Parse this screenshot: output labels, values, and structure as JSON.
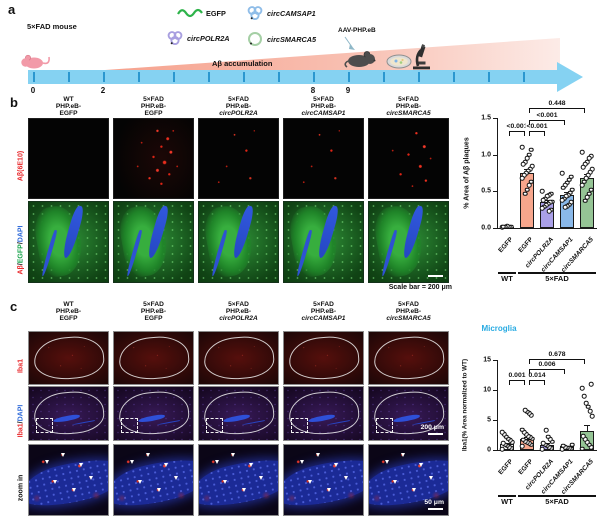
{
  "panel_a": {
    "label": "a",
    "mouse_label": "5×FAD mouse",
    "legend": [
      {
        "name": "EGFP",
        "icon": "wave-icon",
        "color": "#2eb34a"
      },
      {
        "name": "circPOLR2A",
        "icon": "circ-rna-icon",
        "color": "#a89fe0"
      },
      {
        "name": "circCAMSAP1",
        "icon": "circ-rna-icon",
        "color": "#8fbde8"
      },
      {
        "name": "circSMARCA5",
        "icon": "ring-icon",
        "color": "#a5cfa5"
      }
    ],
    "aav_label": "AAV-PHP.eB",
    "accumulation_label": "Aβ accumulation",
    "timeline": {
      "unit": "(Month)",
      "tick_count": 15,
      "labels": [
        {
          "month": 0,
          "text": "0"
        },
        {
          "month": 2,
          "text": "2"
        },
        {
          "month": 8,
          "text": "8"
        },
        {
          "month": 9,
          "text": "9"
        }
      ],
      "bar_color": "#85d2f2"
    }
  },
  "panel_b": {
    "label": "b",
    "columns": [
      [
        "WT",
        "PHP.eB-",
        "EGFP"
      ],
      [
        "5×FAD",
        "PHP.eB-",
        "EGFP"
      ],
      [
        "5×FAD",
        "PHP.eB-",
        "circPOLR2A"
      ],
      [
        "5×FAD",
        "PHP.eB-",
        "circCAMSAP1"
      ],
      [
        "5×FAD",
        "PHP.eB-",
        "circSMARCA5"
      ]
    ],
    "row_labels": [
      {
        "parts": [
          {
            "text": "Aβ(6E10)",
            "color": "#e8262a"
          }
        ]
      },
      {
        "parts": [
          {
            "text": "Aβ",
            "color": "#e8262a"
          },
          {
            "text": "/",
            "color": "#111111"
          },
          {
            "text": "EGFP",
            "color": "#16a34a"
          },
          {
            "text": "/",
            "color": "#111111"
          },
          {
            "text": "DAPI",
            "color": "#2f6ad9"
          }
        ]
      }
    ],
    "image_rows": [
      {
        "name": "abeta",
        "variants": [
          "ab-cell",
          "ab-cell ab-high",
          "ab-cell ab-low",
          "ab-cell ab-low",
          "ab-cell ab-med"
        ]
      },
      {
        "name": "abeta-egfp-dapi",
        "variants": [
          "green-cell",
          "green-cell",
          "green-cell",
          "green-cell",
          "green-cell"
        ]
      }
    ],
    "scale_note": "Scale bar = 200 μm"
  },
  "panel_c": {
    "label": "c",
    "columns": [
      [
        "WT",
        "PHP.eB-",
        "EGFP"
      ],
      [
        "5×FAD",
        "PHP.eB-",
        "EGFP"
      ],
      [
        "5×FAD",
        "PHP.eB-",
        "circPOLR2A"
      ],
      [
        "5×FAD",
        "PHP.eB-",
        "circCAMSAP1"
      ],
      [
        "5×FAD",
        "PHP.eB-",
        "circSMARCA5"
      ]
    ],
    "row_labels": [
      {
        "parts": [
          {
            "text": "Iba1",
            "color": "#e8262a"
          }
        ]
      },
      {
        "parts": [
          {
            "text": "Iba1",
            "color": "#e8262a"
          },
          {
            "text": "/",
            "color": "#111111"
          },
          {
            "text": "DAPI",
            "color": "#2f6ad9"
          }
        ]
      },
      {
        "parts": [
          {
            "text": "zoom in",
            "color": "#111111"
          }
        ]
      }
    ],
    "image_rows": [
      {
        "name": "iba1",
        "variants": [
          "iba-cell",
          "iba-cell",
          "iba-cell",
          "iba-cell",
          "iba-cell"
        ]
      },
      {
        "name": "iba1-dapi",
        "variants": [
          "ibadapi-cell",
          "ibadapi-cell",
          "ibadapi-cell",
          "ibadapi-cell",
          "ibadapi-cell"
        ]
      },
      {
        "name": "zoom-in",
        "variants": [
          "zoom-cell",
          "zoom-cell",
          "zoom-cell",
          "zoom-cell",
          "zoom-cell"
        ]
      }
    ],
    "scale_200": "200 μm",
    "scale_50": "50 μm"
  },
  "chart_data": [
    {
      "id": "chart-b",
      "type": "bar",
      "title": "",
      "ylabel": "% Area of Aβ plaques",
      "ylim": [
        0,
        1.5
      ],
      "yticks": [
        {
          "v": 0,
          "label": "0.0"
        },
        {
          "v": 0.5,
          "label": "0.5"
        },
        {
          "v": 1.0,
          "label": "1.0"
        },
        {
          "v": 1.5,
          "label": "1.5"
        }
      ],
      "categories": [
        "EGFP",
        "EGFP",
        "circPOLR2A",
        "circCAMSAP1",
        "circSMARCA5"
      ],
      "groups": [
        {
          "label": "WT",
          "from": 0,
          "to": 0
        },
        {
          "label": "5×FAD",
          "from": 1,
          "to": 4
        }
      ],
      "values": [
        0.02,
        0.75,
        0.35,
        0.45,
        0.68
      ],
      "errors": [
        0.005,
        0.05,
        0.03,
        0.035,
        0.05
      ],
      "colors": [
        "#ffffff",
        "#f7a68c",
        "#aaa0e8",
        "#8ab9ea",
        "#95c495"
      ],
      "points": [
        [
          0.01,
          0.015,
          0.02,
          0.025,
          0.02,
          0.015
        ],
        [
          1.1,
          1.07,
          1.0,
          0.95,
          0.9,
          0.87,
          0.84,
          0.8,
          0.78,
          0.75,
          0.72,
          0.68,
          0.63,
          0.58,
          0.52,
          0.47
        ],
        [
          0.5,
          0.47,
          0.45,
          0.43,
          0.4,
          0.38,
          0.36,
          0.35,
          0.33,
          0.31,
          0.29,
          0.27,
          0.25,
          0.23
        ],
        [
          0.75,
          0.7,
          0.66,
          0.62,
          0.58,
          0.55,
          0.52,
          0.48,
          0.45,
          0.43,
          0.4,
          0.38,
          0.35,
          0.32,
          0.3,
          0.28
        ],
        [
          1.03,
          0.98,
          0.95,
          0.9,
          0.87,
          0.83,
          0.8,
          0.76,
          0.72,
          0.68,
          0.63,
          0.58,
          0.52,
          0.47,
          0.42,
          0.37
        ]
      ],
      "brackets": [
        {
          "from": 0,
          "to": 1,
          "label": "<0.001",
          "dy": 13
        },
        {
          "from": 1,
          "to": 2,
          "label": "<0.001",
          "dy": 13
        },
        {
          "from": 1,
          "to": 3,
          "label": "<0.001",
          "dy": 2
        },
        {
          "from": 1,
          "to": 4,
          "label": "0.448",
          "dy": -10
        }
      ]
    },
    {
      "id": "chart-c",
      "type": "bar",
      "title": "Microglia",
      "title_color": "#29abe2",
      "ylabel": "Iba1(% Area normalized to WT)",
      "ylim": [
        0,
        15
      ],
      "yticks": [
        {
          "v": 0,
          "label": "0"
        },
        {
          "v": 5,
          "label": "5"
        },
        {
          "v": 10,
          "label": "10"
        },
        {
          "v": 15,
          "label": "15"
        }
      ],
      "categories": [
        "EGFP",
        "EGFP",
        "circPOLR2A",
        "circCAMSAP1",
        "circSMARCA5"
      ],
      "groups": [
        {
          "label": "WT",
          "from": 0,
          "to": 0
        },
        {
          "label": "5×FAD",
          "from": 1,
          "to": 4
        }
      ],
      "values": [
        1.0,
        1.9,
        0.9,
        0.6,
        3.2
      ],
      "errors": [
        0.2,
        0.3,
        0.25,
        0.15,
        1.0
      ],
      "colors": [
        "#ffffff",
        "#f7a68c",
        "#aaa0e8",
        "#8ab9ea",
        "#95c495"
      ],
      "points": [
        [
          0.1,
          0.3,
          0.5,
          0.7,
          0.9,
          1.1,
          1.3,
          1.6,
          1.9,
          2.2,
          2.6,
          3.0
        ],
        [
          0.6,
          0.9,
          1.1,
          1.3,
          1.5,
          1.7,
          1.9,
          2.1,
          2.3,
          2.6,
          3.0,
          3.4,
          5.8,
          6.1,
          6.4,
          6.6
        ],
        [
          0.1,
          0.3,
          0.5,
          0.7,
          0.9,
          1.1,
          1.4,
          1.8,
          2.2,
          3.3
        ],
        [
          0.1,
          0.2,
          0.3,
          0.4,
          0.5,
          0.7,
          0.9
        ],
        [
          0.2,
          0.5,
          0.9,
          1.3,
          1.8,
          2.3,
          5.6,
          6.5,
          7.2,
          7.8,
          9.0,
          10.3,
          11.0
        ]
      ],
      "brackets": [
        {
          "from": 0,
          "to": 1,
          "label": "0.001",
          "dy": 20
        },
        {
          "from": 1,
          "to": 2,
          "label": "0.014",
          "dy": 20
        },
        {
          "from": 1,
          "to": 3,
          "label": "0.006",
          "dy": 9
        },
        {
          "from": 1,
          "to": 4,
          "label": "0.678",
          "dy": -1
        }
      ]
    }
  ]
}
